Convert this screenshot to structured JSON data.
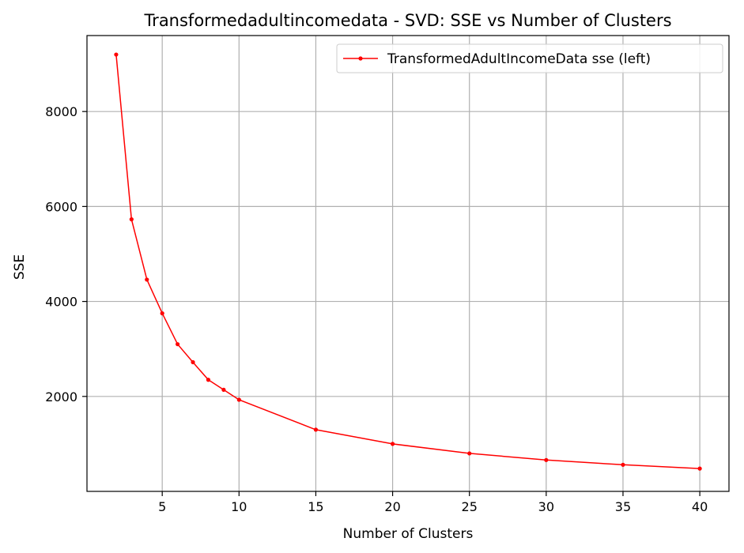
{
  "chart_data": {
    "type": "line",
    "title": "Transformedadultincomedata - SVD: SSE vs Number of Clusters",
    "xlabel": "Number of Clusters",
    "ylabel": "SSE",
    "xlim": [
      0.1,
      41.9
    ],
    "ylim": [
      0,
      9600
    ],
    "xticks": [
      5,
      10,
      15,
      20,
      25,
      30,
      35,
      40
    ],
    "yticks": [
      2000,
      4000,
      6000,
      8000
    ],
    "grid": true,
    "legend_position": "top-right",
    "series": [
      {
        "name": "TransformedAdultIncomeData sse (left)",
        "color": "#ff0000",
        "x": [
          2,
          3,
          4,
          5,
          6,
          7,
          8,
          9,
          10,
          15,
          20,
          25,
          30,
          35,
          40
        ],
        "y": [
          9200,
          5730,
          4460,
          3750,
          3100,
          2720,
          2350,
          2140,
          1930,
          1300,
          1000,
          800,
          660,
          560,
          480
        ]
      }
    ]
  }
}
